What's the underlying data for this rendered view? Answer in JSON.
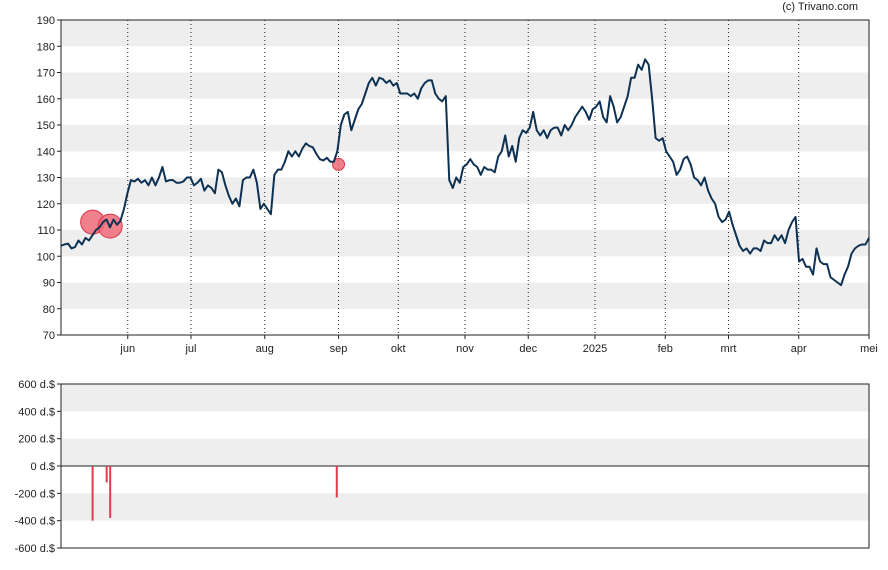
{
  "credit": "(c) Trivano.com",
  "chart_data": [
    {
      "type": "line",
      "ylim": [
        70,
        190
      ],
      "yticks": [
        70,
        80,
        90,
        100,
        110,
        120,
        130,
        140,
        150,
        160,
        170,
        180,
        190
      ],
      "grid": "horizontal bands, dotted vertical month lines",
      "month_labels": [
        "jun",
        "jul",
        "aug",
        "sep",
        "okt",
        "nov",
        "dec",
        "2025",
        "feb",
        "mrt",
        "apr",
        "mei"
      ],
      "x_domain": [
        0,
        230
      ],
      "month_positions": [
        19,
        37,
        58,
        79,
        96,
        115,
        133,
        152,
        172,
        190,
        210,
        230
      ],
      "series": [
        {
          "values": [
            104,
            104.5,
            104.8,
            103,
            103.5,
            106,
            104.5,
            107,
            106,
            108,
            110,
            111,
            113,
            114,
            111,
            114,
            112,
            113.5,
            118,
            124,
            129,
            128.5,
            129.5,
            128,
            129,
            127,
            130,
            127,
            130,
            134,
            128.5,
            129,
            129,
            128,
            128,
            128.5,
            130,
            130,
            127,
            128,
            129.5,
            125,
            127,
            126,
            124,
            133,
            132,
            127,
            123,
            120,
            122,
            119,
            129,
            130,
            130,
            133,
            128,
            118,
            120,
            118,
            116,
            131,
            133,
            133,
            136,
            140,
            138,
            140,
            138,
            141,
            143,
            142,
            141.5,
            139,
            137,
            136.5,
            137.5,
            136,
            136,
            140,
            150,
            154,
            155,
            148,
            152,
            156,
            158,
            162,
            166,
            168,
            165,
            168,
            167.5,
            166,
            167,
            165,
            166,
            162,
            162,
            162,
            161,
            162,
            160,
            164,
            166,
            167,
            167,
            162,
            160,
            159,
            161,
            129,
            126,
            130,
            128,
            134,
            135,
            137,
            135,
            134,
            131,
            134,
            133,
            133,
            132,
            138,
            140,
            146,
            138,
            142,
            136,
            145,
            148,
            147,
            149,
            155,
            148,
            146,
            148,
            145,
            148,
            149,
            149,
            146,
            150,
            148,
            150,
            153,
            155,
            157,
            155,
            152,
            156,
            157,
            159,
            153,
            151,
            161,
            157,
            151,
            153,
            157,
            161,
            168,
            168,
            173,
            171,
            175,
            173,
            160,
            145,
            144,
            145,
            140,
            138,
            136,
            131,
            133,
            137,
            138,
            135,
            130,
            129,
            127,
            130,
            125,
            122,
            120,
            115,
            113,
            114,
            117,
            112,
            108,
            104,
            102,
            103,
            101,
            103,
            103,
            102,
            106,
            105,
            105,
            108,
            106,
            108,
            105,
            110,
            113,
            115,
            98,
            99,
            96,
            96,
            93,
            103,
            98,
            97,
            97,
            92,
            91,
            90,
            89,
            93,
            96,
            101,
            103,
            104,
            104.5,
            104.5,
            107
          ]
        }
      ],
      "markers": [
        {
          "x": 9,
          "y": 113,
          "size": "large"
        },
        {
          "x": 14,
          "y": 111.5,
          "size": "large"
        },
        {
          "x": 79,
          "y": 135,
          "size": "small"
        }
      ]
    },
    {
      "type": "bar",
      "ylim": [
        -600,
        600
      ],
      "ytick_labels": [
        "600 d.$",
        "400 d.$",
        "200 d.$",
        "0 d.$",
        "-200 d.$",
        "-400 d.$",
        "-600 d.$"
      ],
      "yticks": [
        600,
        400,
        200,
        0,
        -200,
        -400,
        -600
      ],
      "x_domain": [
        0,
        230
      ],
      "points": [
        {
          "x": 9,
          "value": -400
        },
        {
          "x": 13,
          "value": -120
        },
        {
          "x": 14,
          "value": -380
        },
        {
          "x": 78.5,
          "value": -230
        }
      ],
      "colors": {
        "line": "#0c3152",
        "bar": "#e03c4c",
        "marker": "#f06a78",
        "band": "#eeeeee"
      }
    }
  ]
}
